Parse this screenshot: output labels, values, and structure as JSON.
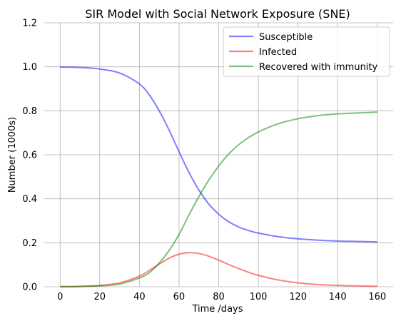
{
  "chart_data": {
    "type": "line",
    "title": "SIR Model with Social Network Exposure (SNE)",
    "xlabel": "Time /days",
    "ylabel": "Number (1000s)",
    "xlim": [
      -8,
      168
    ],
    "ylim": [
      0,
      1.2
    ],
    "xticks": [
      0,
      20,
      40,
      60,
      80,
      100,
      120,
      140,
      160
    ],
    "yticks": [
      0.0,
      0.2,
      0.4,
      0.6,
      0.8,
      1.0,
      1.2
    ],
    "grid": true,
    "legend_position": "top-right",
    "x": [
      0,
      10,
      20,
      30,
      40,
      45,
      50,
      55,
      60,
      65,
      70,
      75,
      80,
      85,
      90,
      95,
      100,
      110,
      120,
      130,
      140,
      150,
      160
    ],
    "series": [
      {
        "name": "Susceptible",
        "color": "#0000ff",
        "values": [
          0.999,
          0.997,
          0.99,
          0.972,
          0.922,
          0.872,
          0.8,
          0.712,
          0.614,
          0.52,
          0.44,
          0.376,
          0.33,
          0.296,
          0.272,
          0.256,
          0.244,
          0.228,
          0.218,
          0.212,
          0.208,
          0.206,
          0.204
        ]
      },
      {
        "name": "Infected",
        "color": "#ff0000",
        "values": [
          0.001,
          0.002,
          0.006,
          0.018,
          0.048,
          0.074,
          0.103,
          0.13,
          0.148,
          0.155,
          0.151,
          0.139,
          0.121,
          0.101,
          0.083,
          0.066,
          0.052,
          0.031,
          0.018,
          0.01,
          0.006,
          0.004,
          0.002
        ]
      },
      {
        "name": "Recovered with immunity",
        "color": "#008000",
        "values": [
          0.0,
          0.001,
          0.004,
          0.012,
          0.04,
          0.064,
          0.108,
          0.165,
          0.238,
          0.326,
          0.41,
          0.485,
          0.549,
          0.603,
          0.645,
          0.678,
          0.704,
          0.741,
          0.764,
          0.778,
          0.786,
          0.79,
          0.794
        ]
      }
    ]
  }
}
